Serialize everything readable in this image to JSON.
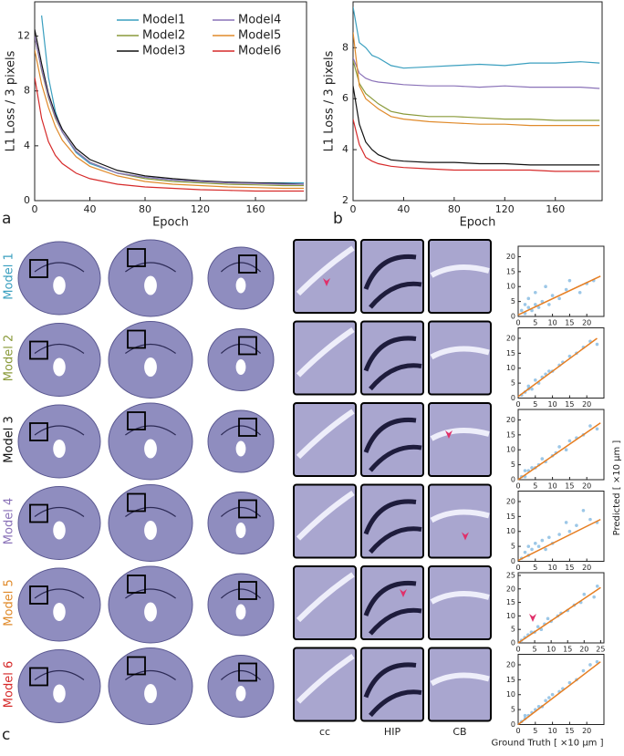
{
  "figure": {
    "panel_labels": [
      "a",
      "b",
      "c"
    ],
    "row_labels": [
      "Model 1",
      "Model 2",
      "Model 3",
      "Model 4",
      "Model 5",
      "Model 6"
    ],
    "column_labels": [
      "cc",
      "HIP",
      "CB"
    ],
    "y_label_right": "Predicted [ ×10 μm ]"
  },
  "chart_data": [
    {
      "type": "line",
      "x_label": "Epoch",
      "y_label": "L1 Loss / 3 pixels",
      "legend": true,
      "x": [
        0,
        5,
        10,
        15,
        20,
        30,
        40,
        60,
        80,
        100,
        120,
        140,
        160,
        180,
        195
      ],
      "xlim": [
        0,
        197
      ],
      "xticks": [
        0,
        40,
        80,
        120,
        160
      ],
      "ylim": [
        0,
        14.5
      ],
      "yticks": [
        0,
        4,
        8,
        12
      ],
      "series": [
        {
          "name": "Model1",
          "color": "#3a9fbf",
          "values": [
            null,
            13.5,
            9,
            6.5,
            5,
            3.5,
            2.7,
            2.0,
            1.7,
            1.5,
            1.4,
            1.35,
            1.3,
            1.3,
            1.3
          ]
        },
        {
          "name": "Model2",
          "color": "#8a9a3a",
          "values": [
            12,
            9.5,
            7.5,
            6,
            5,
            3.6,
            2.8,
            2.0,
            1.6,
            1.4,
            1.3,
            1.2,
            1.15,
            1.1,
            1.1
          ]
        },
        {
          "name": "Model3",
          "color": "#111111",
          "values": [
            12.5,
            10,
            7.8,
            6.3,
            5.2,
            3.8,
            3.0,
            2.2,
            1.8,
            1.6,
            1.45,
            1.35,
            1.3,
            1.25,
            1.2
          ]
        },
        {
          "name": "Model4",
          "color": "#8a72b8",
          "values": [
            12,
            9.6,
            7.6,
            6.1,
            5,
            3.6,
            2.8,
            2.0,
            1.7,
            1.5,
            1.4,
            1.3,
            1.25,
            1.2,
            1.2
          ]
        },
        {
          "name": "Model5",
          "color": "#e08a2a",
          "values": [
            11,
            8.5,
            6.8,
            5.4,
            4.4,
            3.2,
            2.5,
            1.8,
            1.4,
            1.2,
            1.1,
            1.0,
            0.95,
            0.9,
            0.9
          ]
        },
        {
          "name": "Model6",
          "color": "#d62a2a",
          "values": [
            9,
            6,
            4.3,
            3.3,
            2.7,
            2.0,
            1.6,
            1.2,
            1.0,
            0.9,
            0.8,
            0.75,
            0.7,
            0.7,
            0.7
          ]
        }
      ]
    },
    {
      "type": "line",
      "x_label": "Epoch",
      "y_label": "L1 Loss / 3 pixels",
      "legend": false,
      "x": [
        0,
        5,
        10,
        15,
        20,
        30,
        40,
        60,
        80,
        100,
        120,
        140,
        160,
        180,
        195
      ],
      "xlim": [
        0,
        197
      ],
      "xticks": [
        0,
        40,
        80,
        120,
        160
      ],
      "ylim": [
        2,
        9.8
      ],
      "yticks": [
        2,
        4,
        6,
        8
      ],
      "series": [
        {
          "name": "Model1",
          "color": "#3a9fbf",
          "values": [
            9.6,
            8.2,
            8.0,
            7.7,
            7.6,
            7.3,
            7.2,
            7.25,
            7.3,
            7.35,
            7.3,
            7.4,
            7.4,
            7.45,
            7.4
          ]
        },
        {
          "name": "Model2",
          "color": "#8a9a3a",
          "values": [
            7.5,
            6.6,
            6.2,
            6.0,
            5.8,
            5.5,
            5.4,
            5.3,
            5.3,
            5.25,
            5.2,
            5.2,
            5.15,
            5.15,
            5.15
          ]
        },
        {
          "name": "Model3",
          "color": "#111111",
          "values": [
            6.5,
            5.0,
            4.3,
            4.0,
            3.8,
            3.6,
            3.55,
            3.5,
            3.5,
            3.45,
            3.45,
            3.4,
            3.4,
            3.4,
            3.4
          ]
        },
        {
          "name": "Model4",
          "color": "#8a72b8",
          "values": [
            7.6,
            7.0,
            6.8,
            6.7,
            6.65,
            6.6,
            6.55,
            6.5,
            6.5,
            6.45,
            6.5,
            6.45,
            6.45,
            6.45,
            6.4
          ]
        },
        {
          "name": "Model5",
          "color": "#e08a2a",
          "values": [
            8.6,
            6.5,
            6.0,
            5.8,
            5.6,
            5.3,
            5.2,
            5.1,
            5.05,
            5.0,
            5.0,
            4.95,
            4.95,
            4.95,
            4.95
          ]
        },
        {
          "name": "Model6",
          "color": "#d62a2a",
          "values": [
            5.2,
            4.2,
            3.7,
            3.55,
            3.45,
            3.35,
            3.3,
            3.25,
            3.2,
            3.2,
            3.2,
            3.2,
            3.15,
            3.15,
            3.15
          ]
        }
      ]
    },
    {
      "type": "scatter",
      "xlim": [
        0,
        25
      ],
      "xticks": [
        0,
        5,
        10,
        15,
        20
      ],
      "ylim": [
        0,
        23.5
      ],
      "yticks": [
        0,
        5,
        10,
        15,
        20
      ],
      "point_color": "#3a8fd0",
      "line_color": "#e67e22",
      "x": [
        1,
        2,
        2,
        3,
        3,
        4,
        5,
        5,
        6,
        7,
        8,
        9,
        10,
        12,
        14,
        15,
        18,
        20,
        22
      ],
      "y": [
        2,
        4,
        1,
        3,
        6,
        2,
        4,
        8,
        3,
        5,
        10,
        4,
        7,
        6,
        9,
        12,
        8,
        11,
        12
      ],
      "fit_line": {
        "x": [
          0,
          24
        ],
        "y": [
          0.5,
          13.5
        ]
      }
    },
    {
      "type": "scatter",
      "xlim": [
        0,
        25
      ],
      "xticks": [
        0,
        5,
        10,
        15,
        20
      ],
      "ylim": [
        0,
        23.5
      ],
      "yticks": [
        0,
        5,
        10,
        15,
        20
      ],
      "point_color": "#3a8fd0",
      "line_color": "#e67e22",
      "x": [
        1,
        2,
        3,
        3,
        4,
        5,
        6,
        7,
        8,
        9,
        10,
        12,
        13,
        15,
        17,
        19,
        21,
        23
      ],
      "y": [
        1,
        2,
        3,
        4,
        3,
        6,
        5,
        7,
        8,
        9,
        9,
        11,
        12,
        14,
        15,
        17,
        19,
        18
      ],
      "fit_line": {
        "x": [
          0,
          23
        ],
        "y": [
          0.5,
          20
        ]
      }
    },
    {
      "type": "scatter",
      "xlim": [
        0,
        25
      ],
      "xticks": [
        0,
        5,
        10,
        15,
        20
      ],
      "ylim": [
        0,
        23.5
      ],
      "yticks": [
        0,
        5,
        10,
        15,
        20
      ],
      "point_color": "#3a8fd0",
      "line_color": "#e67e22",
      "x": [
        1,
        2,
        2,
        3,
        4,
        5,
        6,
        7,
        8,
        10,
        11,
        12,
        14,
        15,
        17,
        19,
        21,
        23
      ],
      "y": [
        1,
        1,
        3,
        3,
        4,
        4,
        5,
        7,
        6,
        8,
        9,
        11,
        10,
        13,
        14,
        15,
        18,
        17
      ],
      "fit_line": {
        "x": [
          0,
          24
        ],
        "y": [
          0,
          19
        ]
      }
    },
    {
      "type": "scatter",
      "xlim": [
        0,
        25
      ],
      "xticks": [
        0,
        5,
        10,
        15,
        20
      ],
      "ylim": [
        0,
        23.5
      ],
      "yticks": [
        0,
        5,
        10,
        15,
        20
      ],
      "point_color": "#3a8fd0",
      "line_color": "#e67e22",
      "x": [
        1,
        2,
        3,
        3,
        4,
        5,
        6,
        7,
        8,
        9,
        10,
        12,
        14,
        15,
        17,
        19,
        21,
        23
      ],
      "y": [
        1,
        3,
        2,
        5,
        4,
        6,
        5,
        7,
        4,
        8,
        6,
        9,
        13,
        10,
        12,
        17,
        14,
        13
      ],
      "fit_line": {
        "x": [
          0,
          24
        ],
        "y": [
          0.3,
          14
        ]
      }
    },
    {
      "type": "scatter",
      "xlim": [
        0,
        26
      ],
      "xticks": [
        0,
        5,
        10,
        15,
        20,
        25
      ],
      "ylim": [
        0,
        26
      ],
      "yticks": [
        0,
        5,
        10,
        15,
        20,
        25
      ],
      "point_color": "#3a8fd0",
      "line_color": "#e67e22",
      "x": [
        1,
        2,
        3,
        4,
        5,
        6,
        7,
        8,
        9,
        10,
        12,
        13,
        15,
        17,
        19,
        20,
        23,
        24
      ],
      "y": [
        1,
        2,
        3,
        4,
        4,
        6,
        5,
        7,
        9,
        8,
        10,
        11,
        12,
        14,
        15,
        18,
        17,
        21
      ],
      "fit_line": {
        "x": [
          0,
          25
        ],
        "y": [
          0,
          20.5
        ]
      }
    },
    {
      "type": "scatter",
      "xlim": [
        0,
        25
      ],
      "xticks": [
        0,
        5,
        10,
        15,
        20
      ],
      "ylim": [
        0,
        23.5
      ],
      "yticks": [
        0,
        5,
        10,
        15,
        20
      ],
      "point_color": "#3a8fd0",
      "line_color": "#e67e22",
      "x": [
        1,
        2,
        2,
        3,
        4,
        5,
        6,
        7,
        8,
        9,
        10,
        12,
        13,
        15,
        17,
        19,
        21,
        23
      ],
      "y": [
        1,
        2,
        3,
        3,
        4,
        5,
        6,
        6,
        8,
        9,
        10,
        11,
        12,
        14,
        15,
        18,
        20,
        21
      ],
      "fit_line": {
        "x": [
          0,
          24
        ],
        "y": [
          0,
          21
        ]
      },
      "x_label": "Ground Truth [ ×10 μm ]"
    }
  ]
}
